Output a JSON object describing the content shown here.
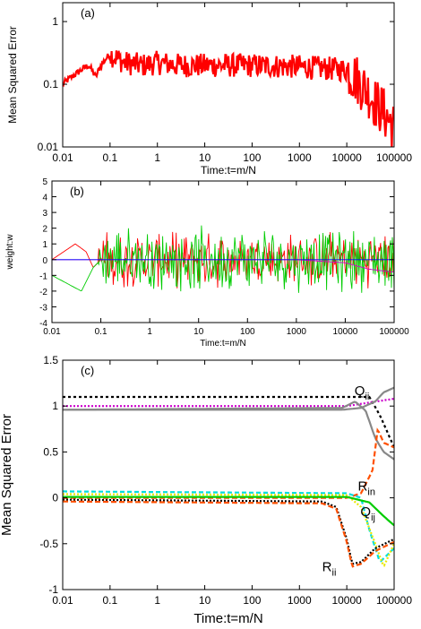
{
  "colors": {
    "red": "#ff0000",
    "green": "#00cc00",
    "magenta": "#cc00cc",
    "blue": "#0000ff",
    "gray": "#888888",
    "orange": "#ff5000",
    "cyan": "#00dddd",
    "yellow": "#e8e800",
    "black": "#000000"
  },
  "chart_data": [
    {
      "type": "line",
      "panel_label": "(a)",
      "xlabel": "Time:t=m/N",
      "ylabel": "Mean Squared Error",
      "xscale": "log",
      "yscale": "log",
      "xlim": [
        0.01,
        100000
      ],
      "ylim": [
        0.01,
        2
      ],
      "x_ticks": [
        "0.01",
        "0.1",
        "1",
        "10",
        "100",
        "1000",
        "10000",
        "100000"
      ],
      "y_ticks": [
        "0.01",
        "0.1",
        "1"
      ],
      "series": [
        {
          "color": "red",
          "x": [
            0.01,
            0.02,
            0.035,
            0.05,
            0.07,
            0.1,
            0.2,
            0.5,
            1,
            3,
            10,
            100,
            1000,
            10000,
            20000,
            40000,
            70000,
            100000
          ],
          "y": [
            0.1,
            0.15,
            0.2,
            0.13,
            0.22,
            0.3,
            0.22,
            0.2,
            0.22,
            0.2,
            0.2,
            0.2,
            0.19,
            0.17,
            0.1,
            0.05,
            0.03,
            0.02
          ]
        }
      ]
    },
    {
      "type": "line",
      "panel_label": "(b)",
      "xlabel": "Time:t=m/N",
      "ylabel": "weight:w",
      "xscale": "log",
      "xlim": [
        0.01,
        100000
      ],
      "ylim": [
        -4,
        5
      ],
      "x_ticks": [
        "0.01",
        "0.1",
        "1",
        "10",
        "100",
        "1000",
        "10000",
        "100000"
      ],
      "y_ticks": [
        "-4",
        "-3",
        "-2",
        "-1",
        "0",
        "1",
        "2",
        "3",
        "4",
        "5"
      ],
      "series": [
        {
          "color": "red",
          "x": [
            0.01,
            0.03,
            0.05,
            0.07,
            0.1,
            100000
          ],
          "y": [
            0,
            1.0,
            0.5,
            -0.5,
            0,
            0
          ],
          "noise": 1.2
        },
        {
          "color": "green",
          "x": [
            0.01,
            0.02,
            0.04,
            0.07,
            0.1,
            100000
          ],
          "y": [
            -1,
            -1.5,
            -2.0,
            -0.5,
            0,
            0
          ],
          "noise": 1.4
        },
        {
          "color": "magenta",
          "x": [
            0.01,
            1000,
            10000,
            30000,
            100000
          ],
          "y": [
            0,
            0,
            -0.2,
            -0.6,
            -0.8
          ]
        },
        {
          "color": "blue",
          "x": [
            0.01,
            100000
          ],
          "y": [
            0,
            0
          ]
        }
      ]
    },
    {
      "type": "line",
      "panel_label": "(c)",
      "xlabel": "Time:t=m/N",
      "ylabel": "Mean Squared Error",
      "xscale": "log",
      "xlim": [
        0.01,
        100000
      ],
      "ylim": [
        -1,
        1.5
      ],
      "x_ticks": [
        "0.01",
        "0.1",
        "1",
        "10",
        "100",
        "1000",
        "10000",
        "100000"
      ],
      "y_ticks": [
        "-1",
        "-0.5",
        "0",
        "0.5",
        "1",
        "1.5"
      ],
      "annotations": [
        {
          "base": "Q",
          "sub": "ii",
          "x": 30000,
          "y": 1.12
        },
        {
          "base": "R",
          "sub": "in",
          "x": 40000,
          "y": 0.08
        },
        {
          "base": "Q",
          "sub": "ij",
          "x": 40000,
          "y": -0.2
        },
        {
          "base": "R",
          "sub": "ii",
          "x": 6000,
          "y": -0.8
        }
      ],
      "series": [
        {
          "color": "black",
          "dash": "3,3",
          "x": [
            0.01,
            10000,
            30000,
            50000,
            100000
          ],
          "y": [
            1.1,
            1.1,
            1.1,
            0.9,
            0.55
          ]
        },
        {
          "color": "magenta",
          "dash": "2,2",
          "x": [
            0.01,
            10000,
            100000
          ],
          "y": [
            1.0,
            1.0,
            1.08
          ]
        },
        {
          "color": "gray",
          "x": [
            0.01,
            8000,
            20000,
            40000,
            60000,
            100000
          ],
          "y": [
            0.96,
            0.96,
            0.98,
            1.05,
            1.15,
            1.2
          ]
        },
        {
          "color": "gray",
          "x": [
            0.01,
            8000,
            15000,
            25000,
            40000,
            60000,
            100000
          ],
          "y": [
            0.96,
            0.98,
            1.05,
            0.95,
            0.65,
            0.5,
            0.42
          ]
        },
        {
          "color": "orange",
          "dash": "6,3",
          "x": [
            0.01,
            10000,
            20000,
            35000,
            45000,
            60000,
            100000
          ],
          "y": [
            0.0,
            0.0,
            0.05,
            0.3,
            0.75,
            0.6,
            0.55
          ]
        },
        {
          "color": "cyan",
          "dash": "5,3",
          "x": [
            0.01,
            10000,
            20000,
            30000,
            50000,
            100000
          ],
          "y": [
            0.07,
            0.05,
            0.0,
            -0.35,
            -0.7,
            -0.55
          ]
        },
        {
          "color": "yellow",
          "dash": "2,2",
          "x": [
            0.01,
            10000,
            20000,
            40000,
            60000,
            100000
          ],
          "y": [
            0.04,
            0.03,
            -0.1,
            -0.5,
            -0.75,
            -0.5
          ]
        },
        {
          "color": "green",
          "x": [
            0.01,
            10000,
            30000,
            60000,
            100000
          ],
          "y": [
            0.01,
            0.01,
            -0.05,
            -0.2,
            -0.3
          ]
        },
        {
          "color": "black",
          "dash": "2,2",
          "x": [
            0.01,
            3000,
            6000,
            10000,
            13000,
            20000,
            40000,
            100000
          ],
          "y": [
            -0.02,
            -0.04,
            -0.1,
            -0.45,
            -0.72,
            -0.7,
            -0.55,
            -0.45
          ]
        },
        {
          "color": "orange",
          "dash": "6,3",
          "x": [
            0.01,
            3000,
            6000,
            10000,
            13000,
            20000,
            40000,
            100000
          ],
          "y": [
            -0.04,
            -0.06,
            -0.12,
            -0.48,
            -0.75,
            -0.72,
            -0.58,
            -0.48
          ]
        }
      ]
    }
  ]
}
